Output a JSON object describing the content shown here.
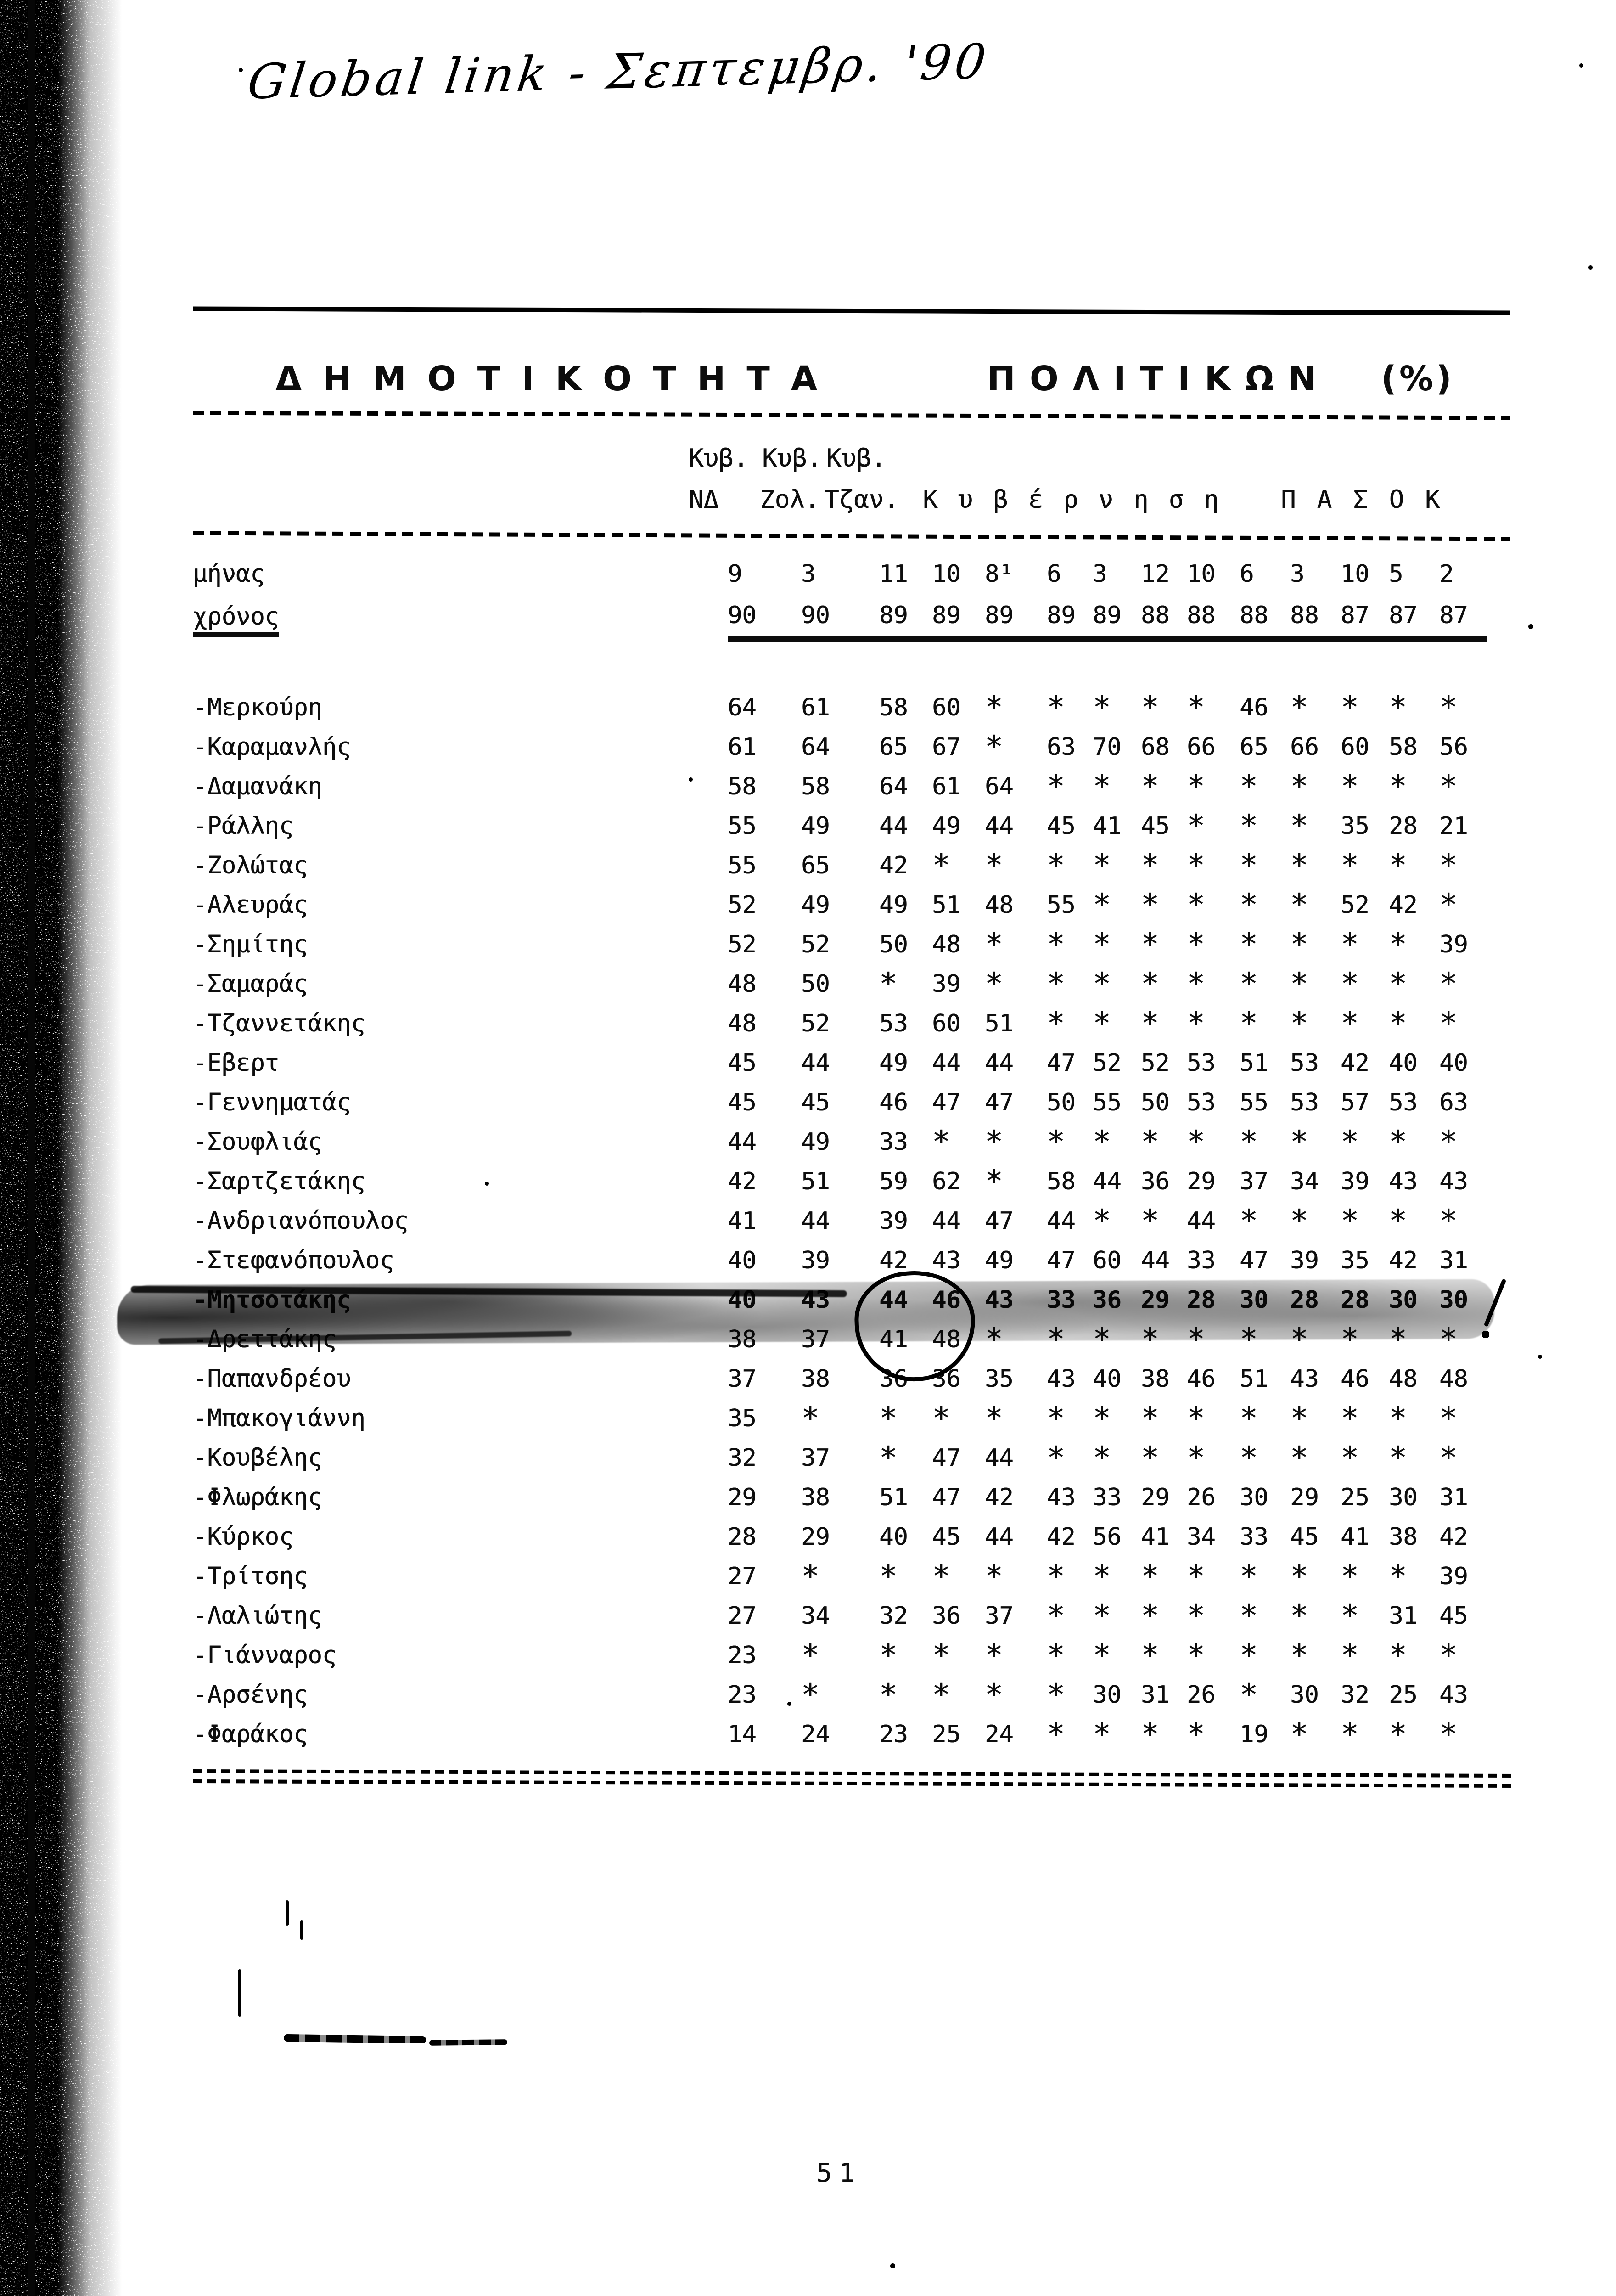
{
  "handwriting": "Global link - Σεπτεμβρ. '90",
  "title": {
    "part1": "ΔΗΜΟΤΙΚΟΤΗΤΑ",
    "part2": "ΠΟΛΙΤΙΚΩΝ",
    "part3": "(%)"
  },
  "header": {
    "kyv1": "Κυβ.",
    "kyv2": "Κυβ.",
    "kyv3": "Κυβ.",
    "nd": "ΝΔ",
    "zol": "Ζολ.",
    "tzan": "Τζαν.",
    "kyvernisi": "Κυβέρνηση",
    "pasok": "ΠΑΣΟΚ"
  },
  "meta_rows": {
    "month_label": "μήνας",
    "month_values": [
      "9",
      "3",
      "11",
      "10",
      "8¹",
      "6",
      "3",
      "12",
      "10",
      "6",
      "3",
      "10",
      "5",
      "2"
    ],
    "year_label": "χρόνος",
    "year_values": [
      "90",
      "90",
      "89",
      "89",
      "89",
      "89",
      "89",
      "88",
      "88",
      "88",
      "88",
      "87",
      "87",
      "87"
    ]
  },
  "table": {
    "rows": [
      {
        "name": "-Μερκούρη",
        "values": [
          "64",
          "61",
          "58",
          "60",
          "*",
          "*",
          "*",
          "*",
          "*",
          "46",
          "*",
          "*",
          "*",
          "*"
        ]
      },
      {
        "name": "-Καραμανλής",
        "values": [
          "61",
          "64",
          "65",
          "67",
          "*",
          "63",
          "70",
          "68",
          "66",
          "65",
          "66",
          "60",
          "58",
          "56"
        ]
      },
      {
        "name": "-Δαμανάκη",
        "values": [
          "58",
          "58",
          "64",
          "61",
          "64",
          "*",
          "*",
          "*",
          "*",
          "*",
          "*",
          "*",
          "*",
          "*"
        ]
      },
      {
        "name": "-Ράλλης",
        "values": [
          "55",
          "49",
          "44",
          "49",
          "44",
          "45",
          "41",
          "45",
          "*",
          "*",
          "*",
          "35",
          "28",
          "21"
        ]
      },
      {
        "name": "-Ζολώτας",
        "values": [
          "55",
          "65",
          "42",
          "*",
          "*",
          "*",
          "*",
          "*",
          "*",
          "*",
          "*",
          "*",
          "*",
          "*"
        ]
      },
      {
        "name": "-Αλευράς",
        "values": [
          "52",
          "49",
          "49",
          "51",
          "48",
          "55",
          "*",
          "*",
          "*",
          "*",
          "*",
          "52",
          "42",
          "*"
        ]
      },
      {
        "name": "-Σημίτης",
        "values": [
          "52",
          "52",
          "50",
          "48",
          "*",
          "*",
          "*",
          "*",
          "*",
          "*",
          "*",
          "*",
          "*",
          "39"
        ]
      },
      {
        "name": "-Σαμαράς",
        "values": [
          "48",
          "50",
          "*",
          "39",
          "*",
          "*",
          "*",
          "*",
          "*",
          "*",
          "*",
          "*",
          "*",
          "*"
        ]
      },
      {
        "name": "-Τζαννετάκης",
        "values": [
          "48",
          "52",
          "53",
          "60",
          "51",
          "*",
          "*",
          "*",
          "*",
          "*",
          "*",
          "*",
          "*",
          "*"
        ]
      },
      {
        "name": "-Εβερτ",
        "values": [
          "45",
          "44",
          "49",
          "44",
          "44",
          "47",
          "52",
          "52",
          "53",
          "51",
          "53",
          "42",
          "40",
          "40"
        ]
      },
      {
        "name": "-Γεννηματάς",
        "values": [
          "45",
          "45",
          "46",
          "47",
          "47",
          "50",
          "55",
          "50",
          "53",
          "55",
          "53",
          "57",
          "53",
          "63"
        ]
      },
      {
        "name": "-Σουφλιάς",
        "values": [
          "44",
          "49",
          "33",
          "*",
          "*",
          "*",
          "*",
          "*",
          "*",
          "*",
          "*",
          "*",
          "*",
          "*"
        ]
      },
      {
        "name": "-Σαρτζετάκης",
        "values": [
          "42",
          "51",
          "59",
          "62",
          "*",
          "58",
          "44",
          "36",
          "29",
          "37",
          "34",
          "39",
          "43",
          "43"
        ]
      },
      {
        "name": "-Ανδριανόπουλος",
        "values": [
          "41",
          "44",
          "39",
          "44",
          "47",
          "44",
          "*",
          "*",
          "44",
          "*",
          "*",
          "*",
          "*",
          "*"
        ]
      },
      {
        "name": "-Στεφανόπουλος",
        "values": [
          "40",
          "39",
          "42",
          "43",
          "49",
          "47",
          "60",
          "44",
          "33",
          "47",
          "39",
          "35",
          "42",
          "31"
        ]
      },
      {
        "name": "-Μητσοτάκης",
        "values": [
          "40",
          "43",
          "44",
          "46",
          "43",
          "33",
          "36",
          "29",
          "28",
          "30",
          "28",
          "28",
          "30",
          "30"
        ],
        "highlighted": true
      },
      {
        "name": "-Δρεττάκης",
        "values": [
          "38",
          "37",
          "41",
          "48",
          "*",
          "*",
          "*",
          "*",
          "*",
          "*",
          "*",
          "*",
          "*",
          "*"
        ]
      },
      {
        "name": "-Παπανδρέου",
        "values": [
          "37",
          "38",
          "36",
          "36",
          "35",
          "43",
          "40",
          "38",
          "46",
          "51",
          "43",
          "46",
          "48",
          "48"
        ]
      },
      {
        "name": "-Μπακογιάννη",
        "values": [
          "35",
          "*",
          "*",
          "*",
          "*",
          "*",
          "*",
          "*",
          "*",
          "*",
          "*",
          "*",
          "*",
          "*"
        ]
      },
      {
        "name": "-Κουβέλης",
        "values": [
          "32",
          "37",
          "*",
          "47",
          "44",
          "*",
          "*",
          "*",
          "*",
          "*",
          "*",
          "*",
          "*",
          "*"
        ]
      },
      {
        "name": "-Φλωράκης",
        "values": [
          "29",
          "38",
          "51",
          "47",
          "42",
          "43",
          "33",
          "29",
          "26",
          "30",
          "29",
          "25",
          "30",
          "31"
        ]
      },
      {
        "name": "-Κύρκος",
        "values": [
          "28",
          "29",
          "40",
          "45",
          "44",
          "42",
          "56",
          "41",
          "34",
          "33",
          "45",
          "41",
          "38",
          "42"
        ]
      },
      {
        "name": "-Τρίτσης",
        "values": [
          "27",
          "*",
          "*",
          "*",
          "*",
          "*",
          "*",
          "*",
          "*",
          "*",
          "*",
          "*",
          "*",
          "39"
        ]
      },
      {
        "name": "-Λαλιώτης",
        "values": [
          "27",
          "34",
          "32",
          "36",
          "37",
          "*",
          "*",
          "*",
          "*",
          "*",
          "*",
          "*",
          "31",
          "45"
        ]
      },
      {
        "name": "-Γιάνναρος",
        "values": [
          "23",
          "*",
          "*",
          "*",
          "*",
          "*",
          "*",
          "*",
          "*",
          "*",
          "*",
          "*",
          "*",
          "*"
        ]
      },
      {
        "name": "-Αρσένης",
        "values": [
          "23",
          "*",
          "*",
          "*",
          "*",
          "*",
          "30",
          "31",
          "26",
          "*",
          "30",
          "32",
          "25",
          "43"
        ]
      },
      {
        "name": "-Φαράκος",
        "values": [
          "14",
          "24",
          "23",
          "25",
          "24",
          "*",
          "*",
          "*",
          "*",
          "19",
          "*",
          "*",
          "*",
          "*"
        ]
      }
    ],
    "highlighted_row": "-Μητσοτάκης",
    "circled_values": [
      "44",
      "46"
    ]
  },
  "page_number": "51",
  "colors": {
    "ink": "#0d0d0d",
    "paper": "#ffffff"
  }
}
